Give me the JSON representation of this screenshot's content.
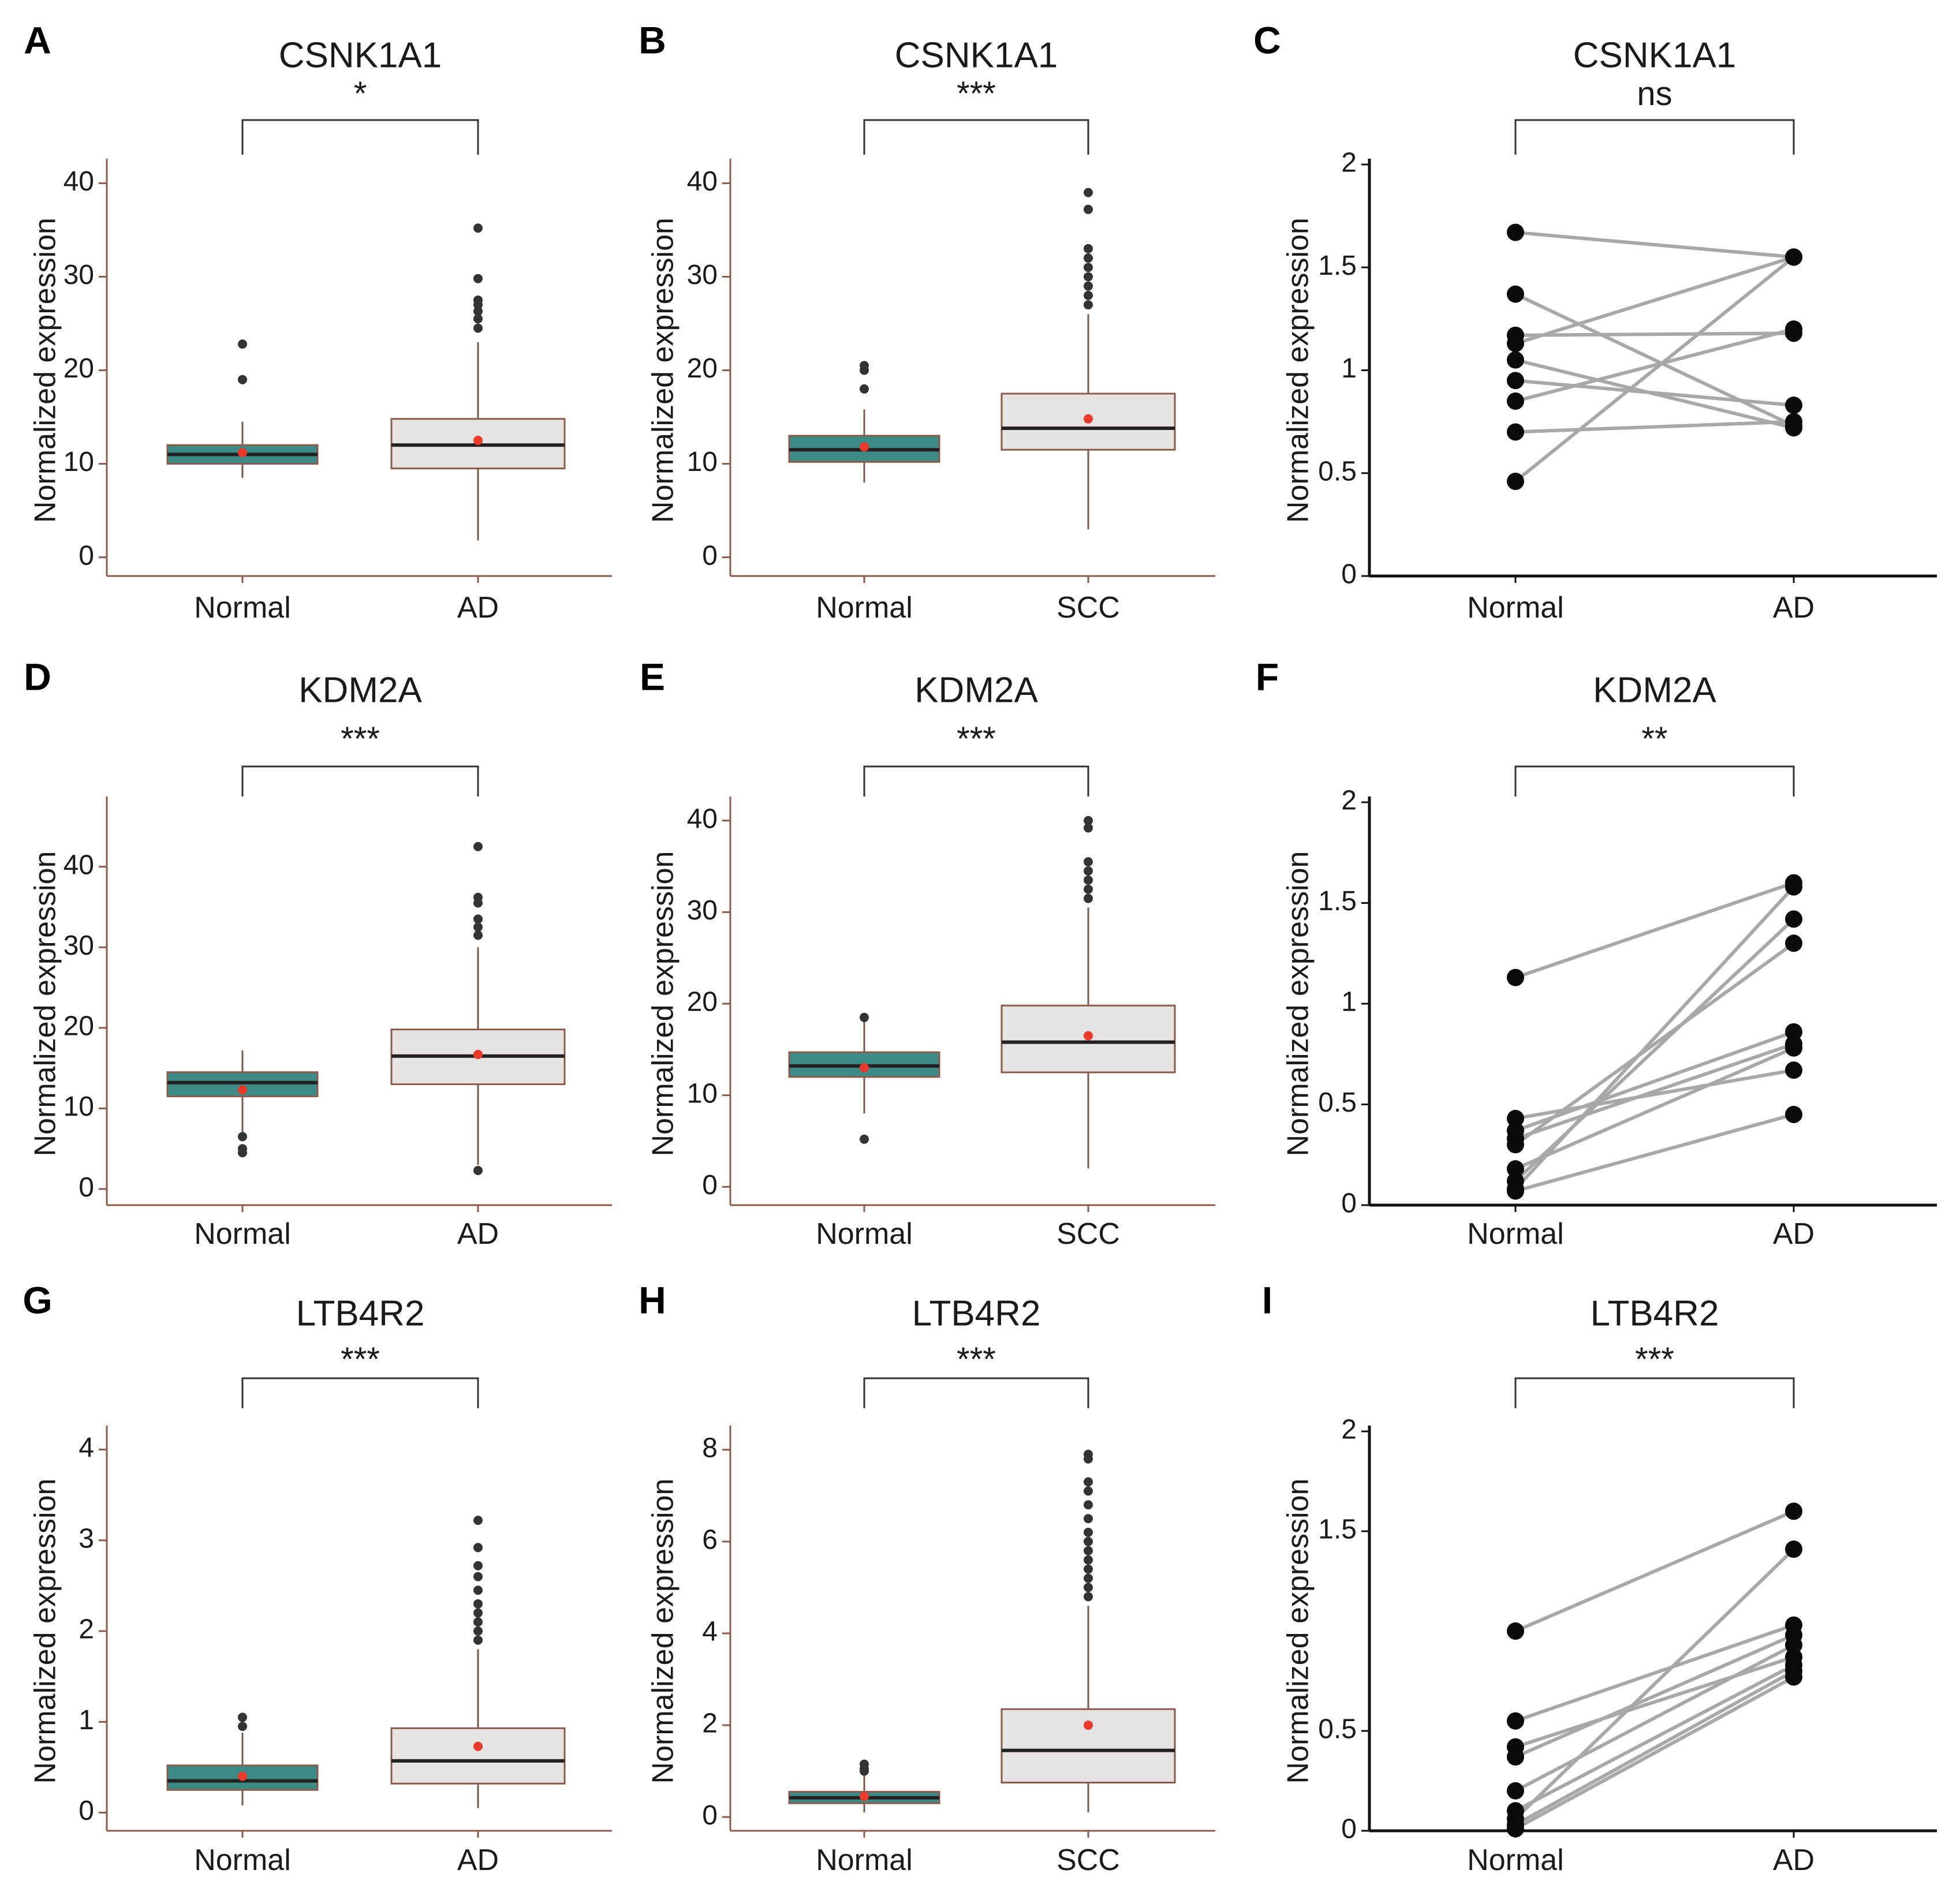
{
  "figure": {
    "colors": {
      "normal_box": "#3e8a87",
      "tumor_box": "#e8e3e3",
      "box_border": "#8a5a4a",
      "median": "#222222",
      "whisker": "#7a5a4a",
      "mean_point": "#e8392b",
      "outlier": "#333333",
      "paired_point": "#0a0a0a",
      "paired_line": "#a8a8a8",
      "axis_box": "#8a5a4a",
      "axis_paired": "#111111",
      "bracket": "#333333"
    }
  },
  "chart_data": [
    {
      "panel": "A",
      "type": "box",
      "title": "CSNK1A1",
      "significance": "*",
      "ylabel": "Normalized expression",
      "categories": [
        "Normal",
        "AD"
      ],
      "ylim": [
        -2,
        42
      ],
      "yticks": [
        0,
        10,
        20,
        30,
        40
      ],
      "ytick_labels": [
        "0",
        "10",
        "20",
        "30",
        "40"
      ],
      "boxes": [
        {
          "name": "Normal",
          "q1": 10,
          "median": 11,
          "q3": 12,
          "whisker_low": 8.5,
          "whisker_high": 14.5,
          "mean": 11.2,
          "outliers": [
            19,
            22.8
          ]
        },
        {
          "name": "AD",
          "q1": 9.5,
          "median": 12,
          "q3": 14.8,
          "whisker_low": 1.8,
          "whisker_high": 23,
          "mean": 12.5,
          "outliers": [
            24.5,
            25.5,
            26.3,
            27,
            27.5,
            29.8,
            35.2
          ]
        }
      ]
    },
    {
      "panel": "B",
      "type": "box",
      "title": "CSNK1A1",
      "significance": "***",
      "ylabel": "Normalized expression",
      "categories": [
        "Normal",
        "SCC"
      ],
      "ylim": [
        -2,
        42
      ],
      "yticks": [
        0,
        10,
        20,
        30,
        40
      ],
      "ytick_labels": [
        "0",
        "10",
        "20",
        "30",
        "40"
      ],
      "boxes": [
        {
          "name": "Normal",
          "q1": 10.2,
          "median": 11.5,
          "q3": 13,
          "whisker_low": 8,
          "whisker_high": 15.8,
          "mean": 11.8,
          "outliers": [
            18,
            20,
            20.5
          ]
        },
        {
          "name": "SCC",
          "q1": 11.5,
          "median": 13.8,
          "q3": 17.5,
          "whisker_low": 3,
          "whisker_high": 26,
          "mean": 14.8,
          "outliers": [
            27,
            28,
            29,
            30,
            31,
            32,
            33,
            37.2,
            39
          ]
        }
      ]
    },
    {
      "panel": "C",
      "type": "paired",
      "title": "CSNK1A1",
      "significance": "ns",
      "ylabel": "Normalized expression",
      "categories": [
        "Normal",
        "AD"
      ],
      "ylim": [
        0,
        2
      ],
      "yticks": [
        0,
        0.5,
        1,
        1.5,
        2
      ],
      "ytick_labels": [
        "0",
        "0.5",
        "1",
        "1.5",
        "2"
      ],
      "pairs": [
        [
          1.67,
          1.55
        ],
        [
          1.37,
          0.73
        ],
        [
          1.17,
          1.18
        ],
        [
          1.13,
          1.55
        ],
        [
          1.05,
          0.72
        ],
        [
          0.95,
          0.83
        ],
        [
          0.85,
          1.2
        ],
        [
          0.7,
          0.75
        ],
        [
          0.46,
          1.55
        ]
      ]
    },
    {
      "panel": "D",
      "type": "box",
      "title": "KDM2A",
      "significance": "***",
      "ylabel": "Normalized expression",
      "categories": [
        "Normal",
        "AD"
      ],
      "ylim": [
        -2,
        48
      ],
      "yticks": [
        0,
        10,
        20,
        30,
        40
      ],
      "ytick_labels": [
        "0",
        "10",
        "20",
        "30",
        "40"
      ],
      "boxes": [
        {
          "name": "Normal",
          "q1": 11.5,
          "median": 13.2,
          "q3": 14.5,
          "whisker_low": 7,
          "whisker_high": 17.2,
          "mean": 12.3,
          "outliers": [
            4.5,
            5,
            6.5
          ]
        },
        {
          "name": "AD",
          "q1": 13,
          "median": 16.5,
          "q3": 19.8,
          "whisker_low": 3,
          "whisker_high": 30,
          "mean": 16.7,
          "outliers": [
            2.3,
            31.5,
            32.5,
            33.5,
            35.5,
            36.2,
            42.5
          ]
        }
      ]
    },
    {
      "panel": "E",
      "type": "box",
      "title": "KDM2A",
      "significance": "***",
      "ylabel": "Normalized expression",
      "categories": [
        "Normal",
        "SCC"
      ],
      "ylim": [
        -2,
        42
      ],
      "yticks": [
        0,
        10,
        20,
        30,
        40
      ],
      "ytick_labels": [
        "0",
        "10",
        "20",
        "30",
        "40"
      ],
      "boxes": [
        {
          "name": "Normal",
          "q1": 12,
          "median": 13.2,
          "q3": 14.7,
          "whisker_low": 8,
          "whisker_high": 18.5,
          "mean": 13,
          "outliers": [
            5.2,
            18.5
          ]
        },
        {
          "name": "SCC",
          "q1": 12.5,
          "median": 15.8,
          "q3": 19.8,
          "whisker_low": 2,
          "whisker_high": 30.5,
          "mean": 16.5,
          "outliers": [
            31.5,
            32.5,
            33.5,
            34.5,
            35.5,
            39.2,
            40
          ]
        }
      ]
    },
    {
      "panel": "F",
      "type": "paired",
      "title": "KDM2A",
      "significance": "**",
      "ylabel": "Normalized expression",
      "categories": [
        "Normal",
        "AD"
      ],
      "ylim": [
        0,
        2
      ],
      "yticks": [
        0,
        0.5,
        1,
        1.5,
        2
      ],
      "ytick_labels": [
        "0",
        "0.5",
        "1",
        "1.5",
        "2"
      ],
      "pairs": [
        [
          1.13,
          1.6
        ],
        [
          0.43,
          0.67
        ],
        [
          0.37,
          0.86
        ],
        [
          0.33,
          0.8
        ],
        [
          0.3,
          1.3
        ],
        [
          0.18,
          0.78
        ],
        [
          0.12,
          1.42
        ],
        [
          0.08,
          1.58
        ],
        [
          0.07,
          0.45
        ]
      ]
    },
    {
      "panel": "G",
      "type": "box",
      "title": "LTB4R2",
      "significance": "***",
      "ylabel": "Normalized expression",
      "categories": [
        "Normal",
        "AD"
      ],
      "ylim": [
        -0.2,
        4.2
      ],
      "yticks": [
        0,
        1,
        2,
        3,
        4
      ],
      "ytick_labels": [
        "0",
        "1",
        "2",
        "3",
        "4"
      ],
      "boxes": [
        {
          "name": "Normal",
          "q1": 0.25,
          "median": 0.35,
          "q3": 0.52,
          "whisker_low": 0.08,
          "whisker_high": 0.88,
          "mean": 0.4,
          "outliers": [
            0.95,
            1.05
          ]
        },
        {
          "name": "AD",
          "q1": 0.32,
          "median": 0.57,
          "q3": 0.93,
          "whisker_low": 0.05,
          "whisker_high": 1.8,
          "mean": 0.73,
          "outliers": [
            1.9,
            2.0,
            2.1,
            2.2,
            2.3,
            2.45,
            2.6,
            2.72,
            2.92,
            3.22
          ]
        }
      ]
    },
    {
      "panel": "H",
      "type": "box",
      "title": "LTB4R2",
      "significance": "***",
      "ylabel": "Normalized expression",
      "categories": [
        "Normal",
        "SCC"
      ],
      "ylim": [
        -0.3,
        8.4
      ],
      "yticks": [
        0,
        2,
        4,
        6,
        8
      ],
      "ytick_labels": [
        "0",
        "2",
        "4",
        "6",
        "8"
      ],
      "boxes": [
        {
          "name": "Normal",
          "q1": 0.3,
          "median": 0.42,
          "q3": 0.55,
          "whisker_low": 0.1,
          "whisker_high": 0.9,
          "mean": 0.45,
          "outliers": [
            1.0,
            1.05,
            1.15
          ]
        },
        {
          "name": "SCC",
          "q1": 0.75,
          "median": 1.45,
          "q3": 2.35,
          "whisker_low": 0.1,
          "whisker_high": 4.6,
          "mean": 2.0,
          "outliers": [
            4.8,
            5.0,
            5.2,
            5.4,
            5.6,
            5.8,
            6.0,
            6.2,
            6.5,
            6.8,
            7.1,
            7.3,
            7.8,
            7.9
          ]
        }
      ]
    },
    {
      "panel": "I",
      "type": "paired",
      "title": "LTB4R2",
      "significance": "***",
      "ylabel": "Normalized expression",
      "categories": [
        "Normal",
        "AD"
      ],
      "ylim": [
        0,
        2
      ],
      "yticks": [
        0,
        0.5,
        1.5,
        2
      ],
      "ytick_labels": [
        "0",
        "0.5",
        "1.5",
        "2"
      ],
      "pairs": [
        [
          1.0,
          1.6
        ],
        [
          0.55,
          1.03
        ],
        [
          0.42,
          0.87
        ],
        [
          0.37,
          0.98
        ],
        [
          0.2,
          0.93
        ],
        [
          0.1,
          0.83
        ],
        [
          0.06,
          1.41
        ],
        [
          0.03,
          0.8
        ],
        [
          0.01,
          0.77
        ]
      ]
    }
  ]
}
